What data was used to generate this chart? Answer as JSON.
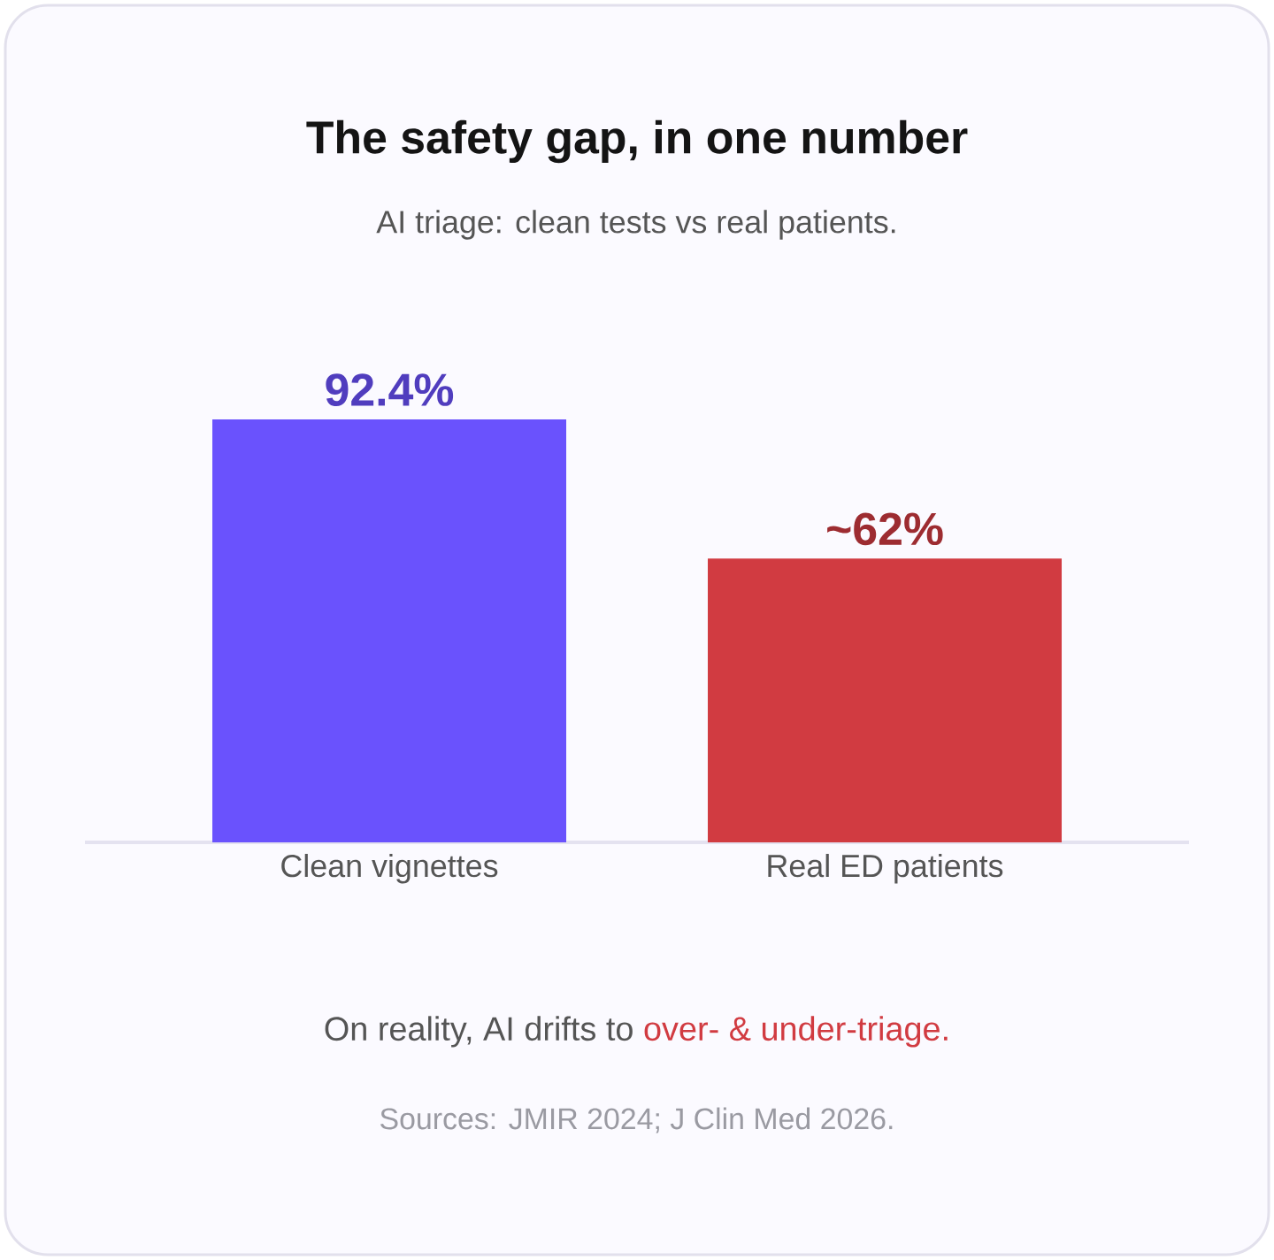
{
  "chart_data": {
    "type": "bar",
    "title": "The safety gap, in one number",
    "subtitle": "AI triage: clean tests vs real patients.",
    "categories": [
      "Clean vignettes",
      "Real ED patients"
    ],
    "values": [
      92.4,
      62
    ],
    "value_labels": [
      "92.4%",
      "~62%"
    ],
    "colors": [
      "#6a52fd",
      "#d13b41"
    ],
    "annotations": [
      "On reality, AI drifts to",
      "over- & under-triage.",
      "Sources: JMIR 2024; J Clin Med 2026."
    ]
  }
}
